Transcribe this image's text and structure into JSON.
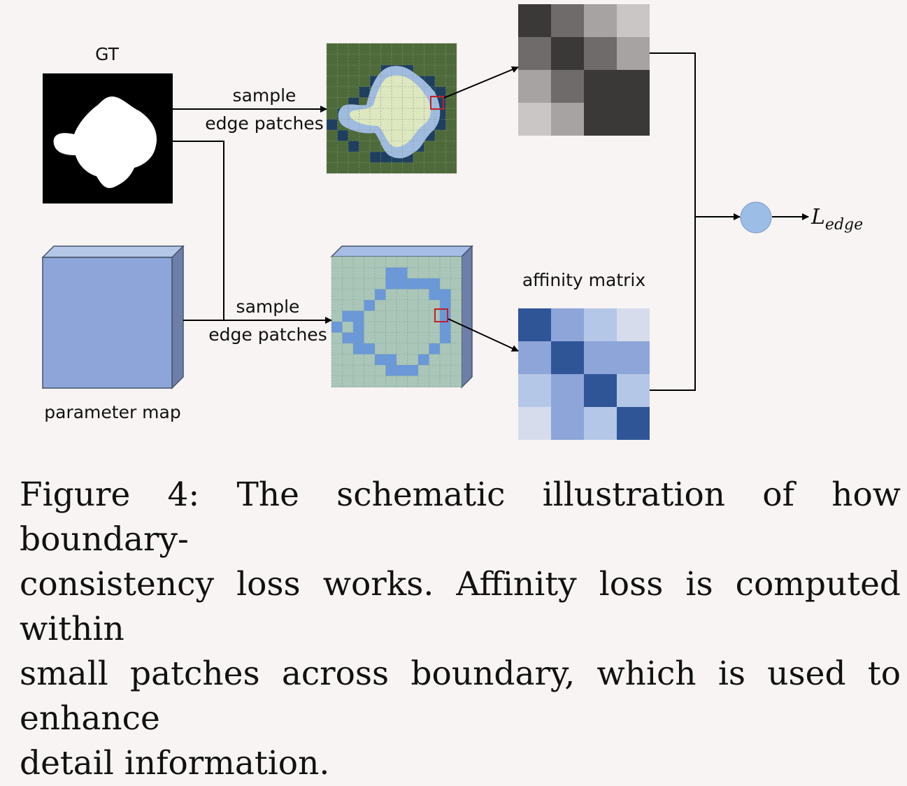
{
  "labels": {
    "gt": "GT",
    "sample_top_line1": "sample",
    "sample_top_line2": "edge patches",
    "sample_bottom_line1": "sample",
    "sample_bottom_line2": "edge patches",
    "parameter_map": "parameter map",
    "affinity_matrix": "affinity matrix",
    "loss_main": "L",
    "loss_sub": "edge"
  },
  "caption": {
    "line1": "Figure 4:  The schematic illustration of how boundary-",
    "line2": "consistency loss works.  Affinity loss is computed within",
    "line3": "small patches across boundary, which is used to enhance",
    "line4": "detail information."
  },
  "colors": {
    "background": "#f8f4f3",
    "gt_mask_bg": "#000000",
    "gt_mask_fg": "#ffffff",
    "patch_outer": "#4e6a3a",
    "patch_boundary": "#1f3f5f",
    "patch_inner_edge": "#9fbbe0",
    "patch_inner_core": "#dde7c0",
    "param_map_face": "#8ea5d9",
    "param_patch_face": "#a9c6b8",
    "param_patch_boundary": "#6a98d8",
    "highlight": "#c0202a",
    "loss_node": "#9bbde6"
  },
  "matrices": {
    "gt_affinity": [
      [
        "#3b3838",
        "#6f6b6b",
        "#a8a3a3",
        "#cbc6c6"
      ],
      [
        "#6f6b6b",
        "#3b3838",
        "#6f6b6b",
        "#a8a3a3"
      ],
      [
        "#a8a3a3",
        "#6f6b6b",
        "#3b3838",
        "#3b3838"
      ],
      [
        "#cbc6c6",
        "#a8a3a3",
        "#3b3838",
        "#3b3838"
      ]
    ],
    "pred_affinity": [
      [
        "#2f5597",
        "#8ea5d9",
        "#b4c7e7",
        "#d6dcec"
      ],
      [
        "#8ea5d9",
        "#2f5597",
        "#8ea5d9",
        "#8ea5d9"
      ],
      [
        "#b4c7e7",
        "#8ea5d9",
        "#2f5597",
        "#b4c7e7"
      ],
      [
        "#d6dcec",
        "#8ea5d9",
        "#b4c7e7",
        "#2f5597"
      ]
    ]
  }
}
